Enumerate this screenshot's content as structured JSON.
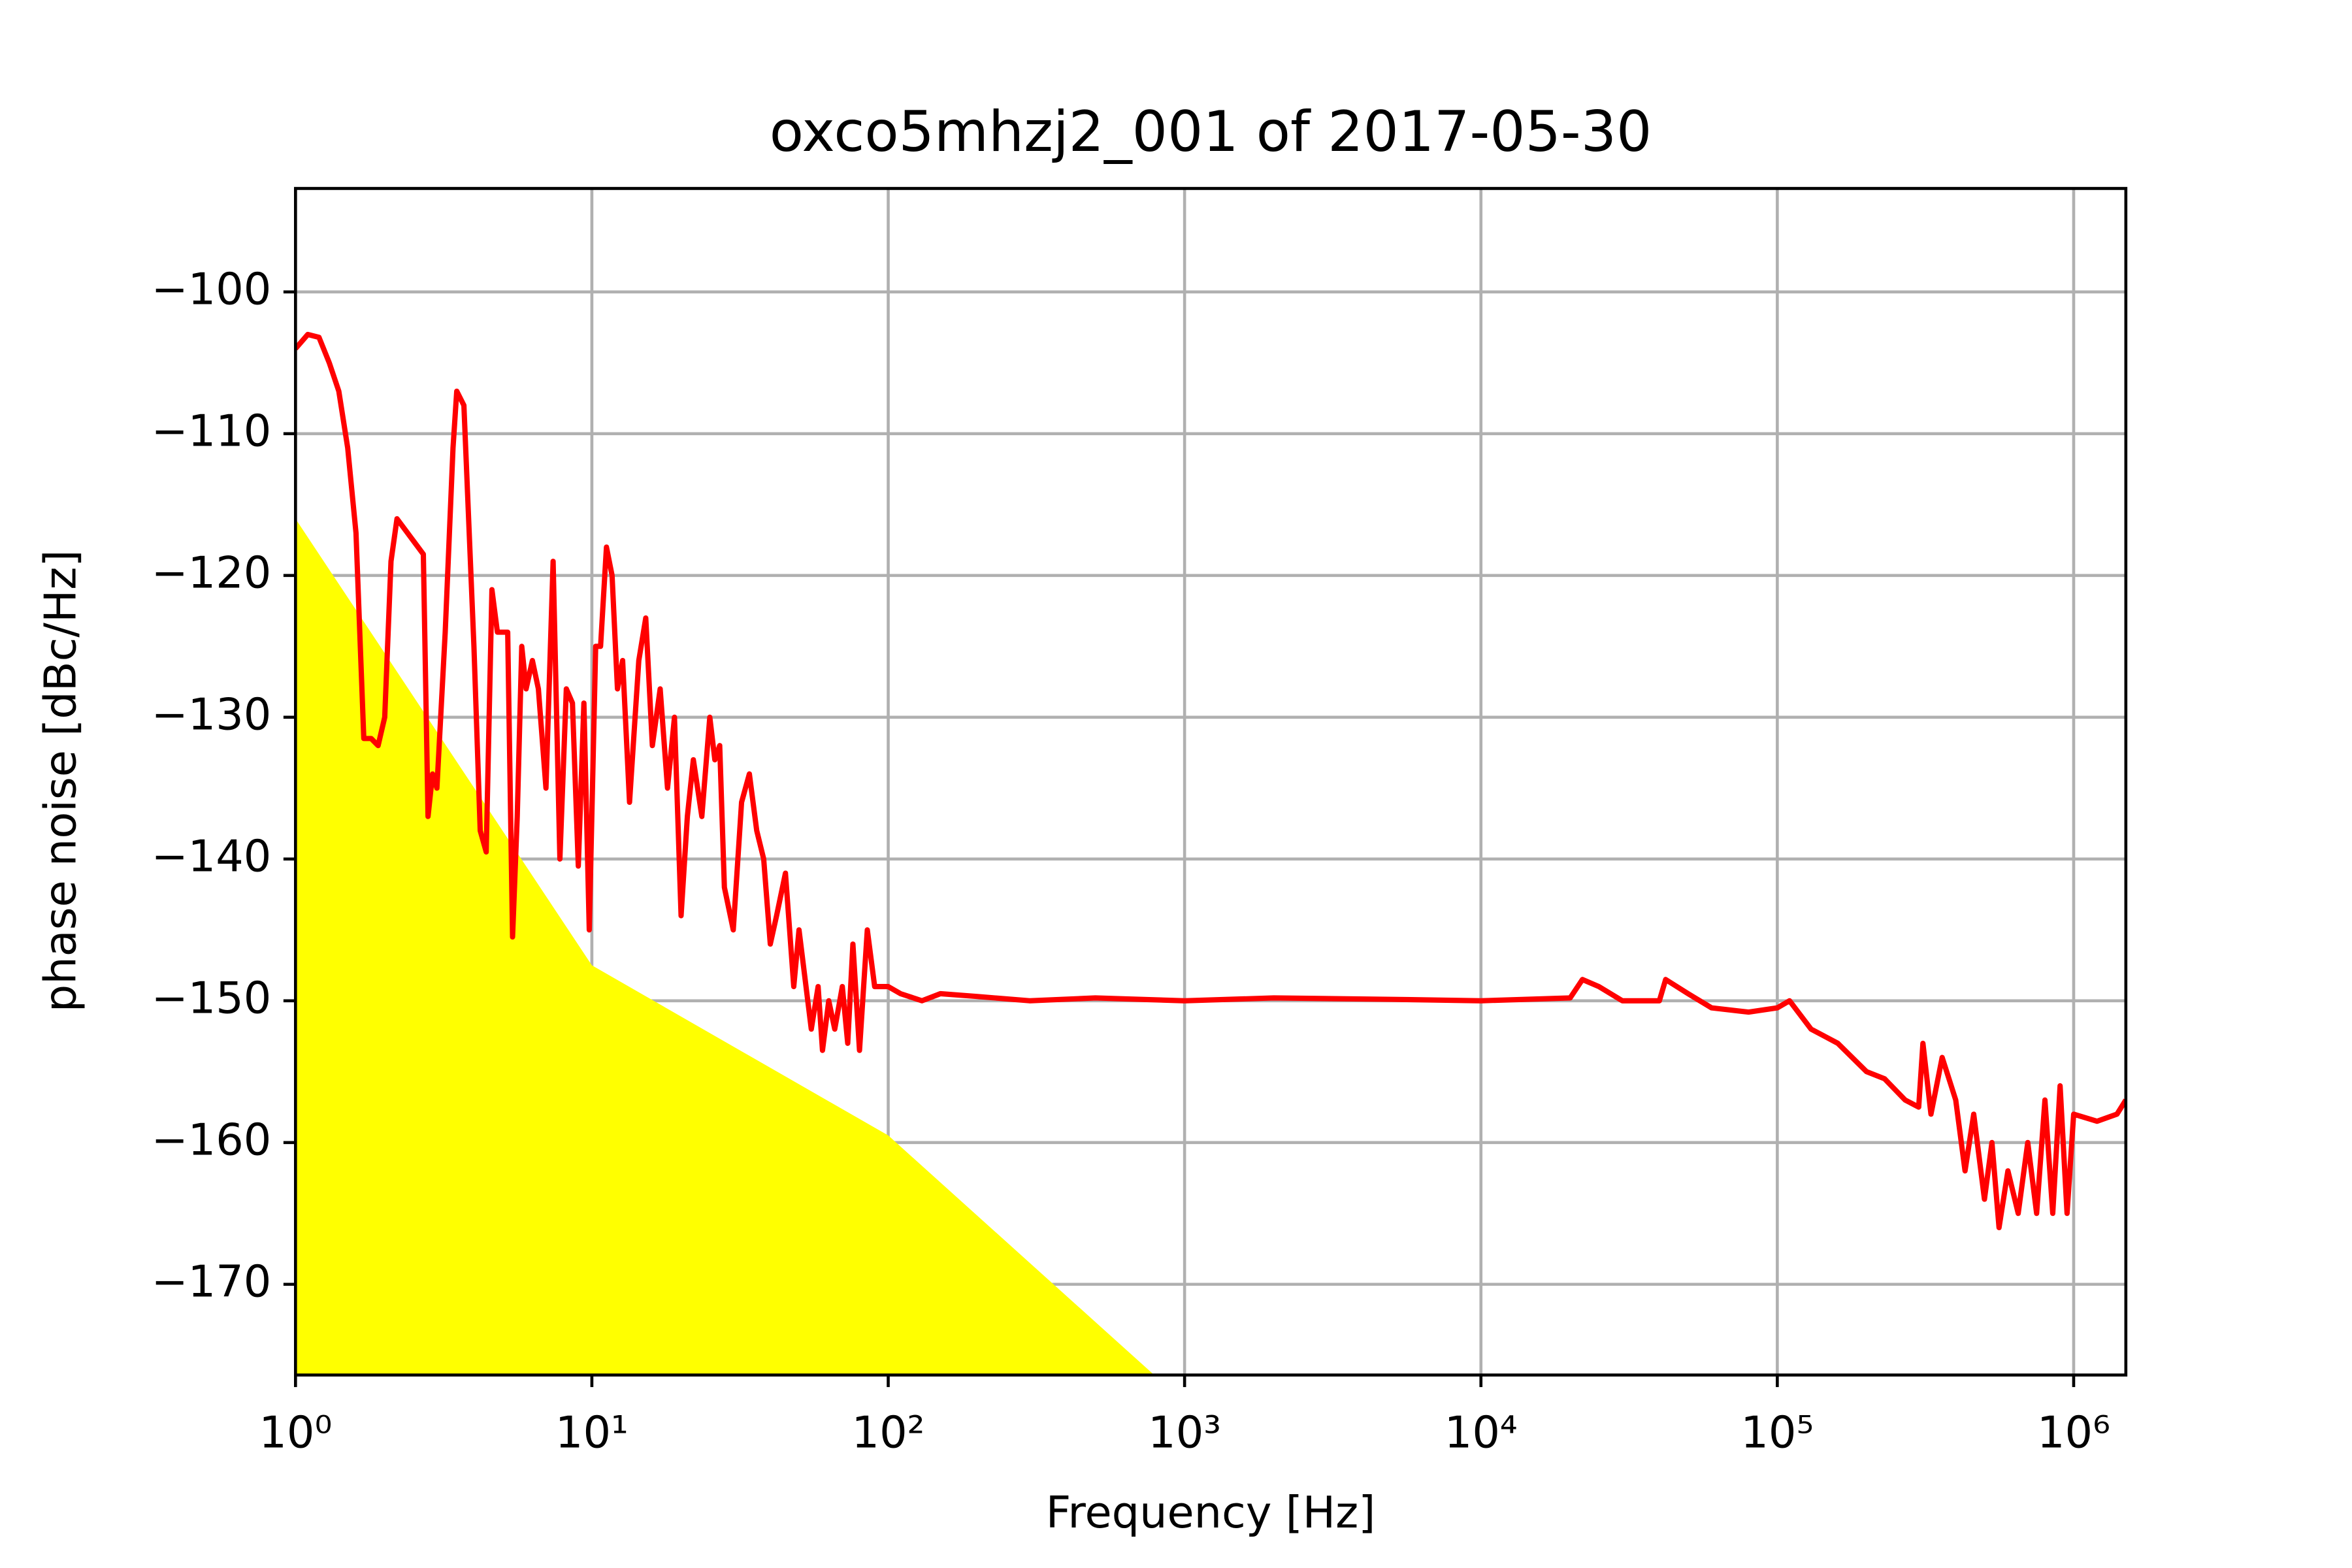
{
  "chart_data": {
    "type": "line",
    "title": "oxco5mhzj2_001 of 2017-05-30",
    "xlabel": "Frequency [Hz]",
    "ylabel": "phase noise [dBc/Hz]",
    "xscale": "log",
    "grid": true,
    "xlim": [
      1,
      1500000
    ],
    "ylim": [
      -176.4,
      -92.7
    ],
    "xticks": [
      {
        "value": 1,
        "label": "10⁰"
      },
      {
        "value": 10,
        "label": "10¹"
      },
      {
        "value": 100,
        "label": "10²"
      },
      {
        "value": 1000,
        "label": "10³"
      },
      {
        "value": 10000,
        "label": "10⁴"
      },
      {
        "value": 100000,
        "label": "10⁵"
      },
      {
        "value": 1000000,
        "label": "10⁶"
      }
    ],
    "yticks": [
      {
        "value": -100,
        "label": "−100"
      },
      {
        "value": -110,
        "label": "−110"
      },
      {
        "value": -120,
        "label": "−120"
      },
      {
        "value": -130,
        "label": "−130"
      },
      {
        "value": -140,
        "label": "−140"
      },
      {
        "value": -150,
        "label": "−150"
      },
      {
        "value": -160,
        "label": "−160"
      },
      {
        "value": -170,
        "label": "−170"
      }
    ],
    "series": [
      {
        "kind": "area",
        "color": "#ffff00",
        "x": [
          1,
          10,
          100,
          850
        ],
        "values": [
          -116,
          -147.5,
          -159.5,
          -177
        ]
      },
      {
        "kind": "line",
        "color": "#ff0000",
        "x": [
          1,
          1.1,
          1.2,
          1.3,
          1.4,
          1.5,
          1.6,
          1.7,
          1.8,
          1.9,
          2.0,
          2.1,
          2.2,
          2.7,
          2.8,
          2.9,
          3.0,
          3.2,
          3.4,
          3.5,
          3.7,
          4.0,
          4.2,
          4.4,
          4.6,
          4.8,
          5.2,
          5.4,
          5.6,
          5.8,
          6.0,
          6.3,
          6.6,
          7.0,
          7.4,
          7.8,
          8.2,
          8.6,
          9.0,
          9.4,
          9.8,
          10.3,
          10.7,
          11.2,
          11.7,
          12.2,
          12.7,
          13.4,
          14.4,
          15.2,
          16,
          17,
          18,
          19,
          20,
          21,
          22,
          23.5,
          25,
          26,
          27,
          28,
          30,
          32,
          34,
          36,
          38,
          40,
          42,
          45,
          48,
          50,
          55,
          58,
          60,
          63,
          66,
          70,
          73,
          76,
          80,
          85,
          90,
          100,
          110,
          130,
          150,
          200,
          300,
          500,
          1000,
          2000,
          5000,
          10000,
          20000,
          22000,
          25000,
          30000,
          40000,
          42000,
          50000,
          60000,
          80000,
          100000,
          110000,
          130000,
          160000,
          200000,
          230000,
          270000,
          300000,
          310000,
          330000,
          360000,
          400000,
          430000,
          460000,
          500000,
          530000,
          560000,
          600000,
          650000,
          700000,
          750000,
          800000,
          850000,
          900000,
          950000,
          1000000,
          1200000,
          1400000,
          1500000
        ],
        "values": [
          -104,
          -103,
          -103.2,
          -105,
          -107,
          -111,
          -117,
          -131.5,
          -131.5,
          -132,
          -130,
          -119,
          -116,
          -118.5,
          -137,
          -134,
          -135,
          -124,
          -111,
          -107,
          -108,
          -125,
          -138,
          -139.5,
          -121,
          -124,
          -124,
          -145.5,
          -137,
          -125,
          -128,
          -126,
          -128,
          -135,
          -119,
          -140,
          -128,
          -129,
          -140.5,
          -129,
          -145,
          -125,
          -125,
          -118,
          -120,
          -128,
          -126,
          -136,
          -126,
          -123,
          -132,
          -128,
          -135,
          -130,
          -144,
          -137,
          -133,
          -137,
          -130,
          -133,
          -132,
          -142,
          -145,
          -136,
          -134,
          -138,
          -140,
          -146,
          -144,
          -141,
          -149,
          -145,
          -152,
          -149,
          -153.5,
          -150,
          -152,
          -149,
          -153,
          -146,
          -153.5,
          -145,
          -149,
          -149,
          -149.5,
          -150,
          -149.5,
          -149.7,
          -150,
          -149.8,
          -150,
          -149.8,
          -149.9,
          -150,
          -149.8,
          -148.5,
          -149,
          -150,
          -150,
          -148.5,
          -149.5,
          -150.5,
          -150.8,
          -150.5,
          -150,
          -152,
          -153,
          -155,
          -155.5,
          -157,
          -157.5,
          -153,
          -158,
          -154,
          -157,
          -162,
          -158,
          -164,
          -160,
          -166,
          -162,
          -165,
          -160,
          -165,
          -157,
          -165,
          -156,
          -165,
          -158,
          -158.5,
          -158,
          -157
        ]
      }
    ]
  }
}
